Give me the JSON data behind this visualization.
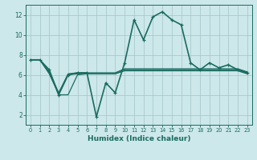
{
  "xlabel": "Humidex (Indice chaleur)",
  "bg_color": "#cde8ea",
  "grid_color": "#aac8cc",
  "line_color": "#1a6b60",
  "lines": [
    {
      "x": [
        0,
        1,
        2,
        3,
        4,
        5,
        6,
        7,
        8,
        9,
        10,
        11,
        12,
        13,
        14,
        15,
        16,
        17,
        18,
        19,
        20,
        21,
        22,
        23
      ],
      "y": [
        7.5,
        7.5,
        6.5,
        4.0,
        6.0,
        6.2,
        6.2,
        1.8,
        5.2,
        4.2,
        7.2,
        11.5,
        9.5,
        11.8,
        12.3,
        11.5,
        11.0,
        7.2,
        6.5,
        7.2,
        6.7,
        7.0,
        6.5,
        6.2
      ],
      "marker": true,
      "linewidth": 1.2
    },
    {
      "x": [
        0,
        1,
        2,
        3,
        4,
        5,
        6,
        7,
        8,
        9,
        10,
        11,
        12,
        13,
        14,
        15,
        16,
        17,
        18,
        19,
        20,
        21,
        22,
        23
      ],
      "y": [
        7.5,
        7.5,
        6.2,
        4.0,
        4.0,
        6.0,
        6.1,
        6.1,
        6.1,
        6.1,
        6.5,
        6.5,
        6.5,
        6.5,
        6.5,
        6.5,
        6.5,
        6.5,
        6.5,
        6.5,
        6.5,
        6.5,
        6.5,
        6.2
      ],
      "marker": false,
      "linewidth": 0.9
    },
    {
      "comment": "line 3 - flat ~6.3",
      "x": [
        0,
        1,
        2,
        3,
        4,
        5,
        6,
        7,
        8,
        9,
        10,
        11,
        12,
        13,
        14,
        15,
        16,
        17,
        18,
        19,
        20,
        21,
        22,
        23
      ],
      "y": [
        7.5,
        7.5,
        6.3,
        4.2,
        6.1,
        6.2,
        6.2,
        6.2,
        6.2,
        6.2,
        6.6,
        6.6,
        6.6,
        6.6,
        6.6,
        6.6,
        6.6,
        6.6,
        6.6,
        6.6,
        6.6,
        6.6,
        6.6,
        6.3
      ],
      "marker": false,
      "linewidth": 0.9
    },
    {
      "comment": "line 4 - flat ~6.1",
      "x": [
        0,
        1,
        2,
        3,
        4,
        5,
        6,
        7,
        8,
        9,
        10,
        11,
        12,
        13,
        14,
        15,
        16,
        17,
        18,
        19,
        20,
        21,
        22,
        23
      ],
      "y": [
        7.5,
        7.5,
        6.1,
        4.1,
        6.0,
        6.1,
        6.1,
        6.1,
        6.1,
        6.1,
        6.4,
        6.4,
        6.4,
        6.4,
        6.4,
        6.4,
        6.4,
        6.4,
        6.4,
        6.4,
        6.4,
        6.4,
        6.4,
        6.1
      ],
      "marker": false,
      "linewidth": 0.9
    }
  ],
  "ylim": [
    1,
    13
  ],
  "xlim": [
    -0.5,
    23.5
  ],
  "yticks": [
    2,
    4,
    6,
    8,
    10,
    12
  ],
  "xticks": [
    0,
    1,
    2,
    3,
    4,
    5,
    6,
    7,
    8,
    9,
    10,
    11,
    12,
    13,
    14,
    15,
    16,
    17,
    18,
    19,
    20,
    21,
    22,
    23
  ]
}
